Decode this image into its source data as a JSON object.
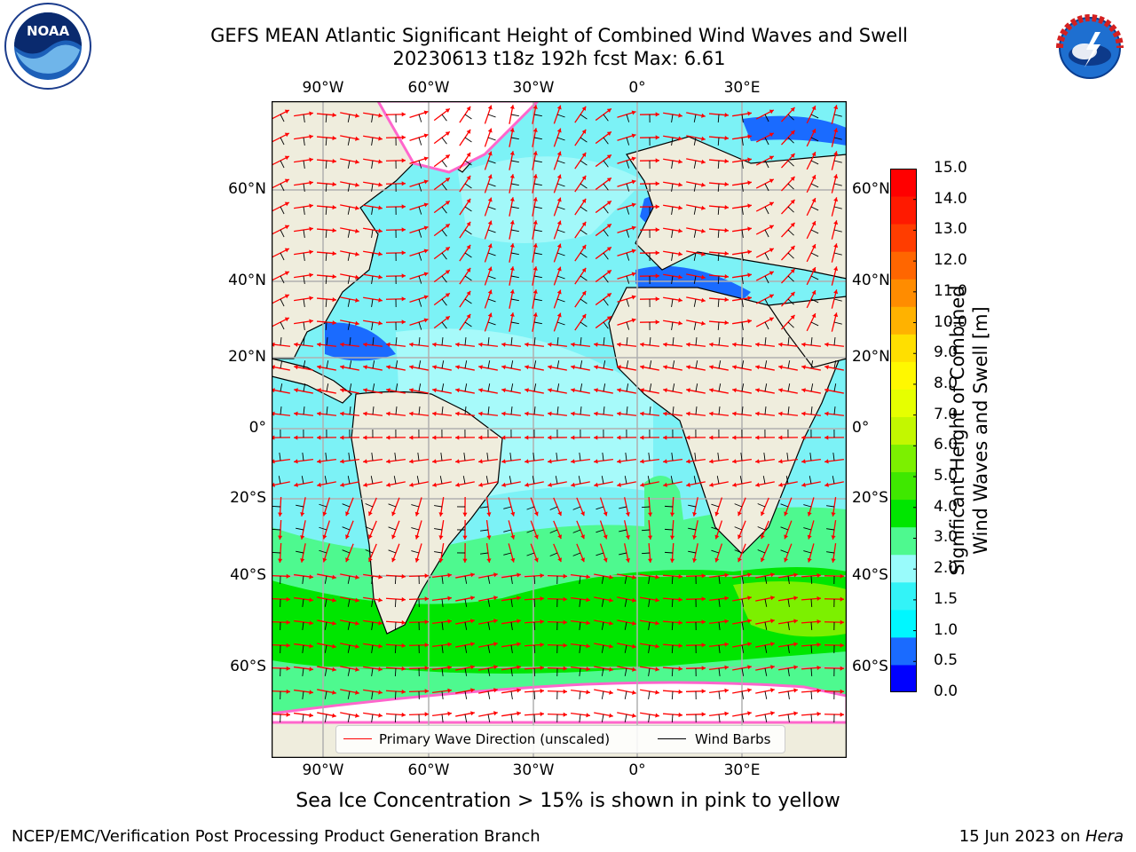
{
  "header": {
    "title_line1": "GEFS MEAN Atlantic Significant Height of Combined Wind Waves and Swell",
    "title_line2": "20230613 t18z 192h fcst   Max: 6.61"
  },
  "logos": {
    "left": "NOAA",
    "right": "NATIONAL WEATHER SERVICE"
  },
  "map": {
    "lon_labels": [
      "90°W",
      "60°W",
      "30°W",
      "0°",
      "30°E"
    ],
    "lat_labels_left": [
      "60°N",
      "40°N",
      "20°N",
      "0°",
      "20°S",
      "40°S",
      "60°S"
    ],
    "lat_labels_right": [
      "60°N",
      "40°N",
      "20°N",
      "0°",
      "20°S",
      "40°S",
      "60°S"
    ],
    "colors": {
      "land": "#efeddd",
      "ocean_base": "#7cf2f6",
      "grid": "#b0b0b0",
      "ice": "#ffffff"
    }
  },
  "colorbar": {
    "ticks": [
      "15.0",
      "14.0",
      "13.0",
      "12.0",
      "11.0",
      "10.0",
      "9.0",
      "8.0",
      "7.0",
      "6.0",
      "5.0",
      "4.0",
      "3.0",
      "2.0",
      "1.5",
      "1.0",
      "0.5",
      "0.0"
    ],
    "colors": [
      "#0000ff",
      "#1a6bff",
      "#00f7ff",
      "#33f3f7",
      "#99fbfb",
      "#4ef98f",
      "#00e600",
      "#3fe800",
      "#7cf000",
      "#c3f700",
      "#e6ff00",
      "#fff800",
      "#ffdf00",
      "#ffb200",
      "#ff8c00",
      "#ff6600",
      "#ff3d00",
      "#ff1a00",
      "#ff0000"
    ],
    "label_line1": "Significant Height of Combined",
    "label_line2": "Wind Waves and Swell [m]"
  },
  "legend": {
    "items": [
      {
        "label": "Primary Wave Direction (unscaled)",
        "color": "#ff0000"
      },
      {
        "label": "Wind Barbs",
        "color": "#000000"
      }
    ]
  },
  "caption": "Sea Ice Concentration > 15% is shown in pink to yellow",
  "footer": {
    "left": "NCEP/EMC/Verification Post Processing Product Generation Branch",
    "right_date": "15 Jun 2023 on ",
    "right_host": "Hera"
  }
}
